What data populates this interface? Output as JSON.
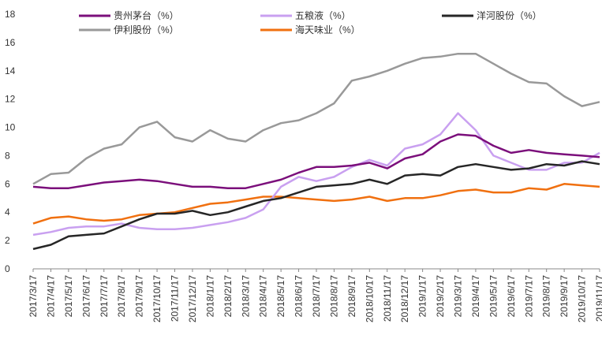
{
  "chart_data": {
    "type": "line",
    "categories": [
      "2017/3/17",
      "2017/4/17",
      "2017/5/17",
      "2017/6/17",
      "2017/7/17",
      "2017/8/17",
      "2017/9/17",
      "2017/10/17",
      "2017/11/17",
      "2017/12/17",
      "2018/1/17",
      "2018/2/17",
      "2018/3/17",
      "2018/4/17",
      "2018/5/17",
      "2018/6/17",
      "2018/7/17",
      "2018/8/17",
      "2018/9/17",
      "2018/10/17",
      "2018/11/17",
      "2018/12/17",
      "2019/1/17",
      "2019/2/17",
      "2019/3/17",
      "2019/4/17",
      "2019/5/17",
      "2019/6/17",
      "2019/7/17",
      "2019/8/17",
      "2019/9/17",
      "2019/10/17",
      "2019/11/17"
    ],
    "series": [
      {
        "name": "贵州茅台（%）",
        "color": "#7b0f7b",
        "values": [
          5.8,
          5.7,
          5.7,
          5.9,
          6.1,
          6.2,
          6.3,
          6.2,
          6.0,
          5.8,
          5.8,
          5.7,
          5.7,
          6.0,
          6.3,
          6.8,
          7.2,
          7.2,
          7.3,
          7.5,
          7.1,
          7.8,
          8.1,
          9.0,
          9.5,
          9.4,
          8.7,
          8.2,
          8.4,
          8.2,
          8.1,
          8.0,
          7.9
        ]
      },
      {
        "name": "五粮液（%）",
        "color": "#c9a0f0",
        "values": [
          2.4,
          2.6,
          2.9,
          3.0,
          3.0,
          3.2,
          2.9,
          2.8,
          2.8,
          2.9,
          3.1,
          3.3,
          3.6,
          4.2,
          5.8,
          6.5,
          6.2,
          6.5,
          7.2,
          7.7,
          7.3,
          8.5,
          8.8,
          9.5,
          11.0,
          9.8,
          8.0,
          7.5,
          7.0,
          7.0,
          7.5,
          7.5,
          8.2
        ]
      },
      {
        "name": "洋河股份（%）",
        "color": "#262626",
        "values": [
          1.4,
          1.7,
          2.3,
          2.4,
          2.5,
          3.0,
          3.5,
          3.9,
          3.9,
          4.1,
          3.8,
          4.0,
          4.4,
          4.8,
          5.0,
          5.4,
          5.8,
          5.9,
          6.0,
          6.3,
          6.0,
          6.6,
          6.7,
          6.6,
          7.2,
          7.4,
          7.2,
          7.0,
          7.1,
          7.4,
          7.3,
          7.6,
          7.4
        ]
      },
      {
        "name": "伊利股份（%）",
        "color": "#999999",
        "values": [
          6.0,
          6.7,
          6.8,
          7.8,
          8.5,
          8.8,
          10.0,
          10.4,
          9.3,
          9.0,
          9.8,
          9.2,
          9.0,
          9.8,
          10.3,
          10.5,
          11.0,
          11.7,
          13.3,
          13.6,
          14.0,
          14.5,
          14.9,
          15.0,
          15.2,
          15.2,
          14.5,
          13.8,
          13.2,
          13.1,
          12.2,
          11.5,
          11.8
        ]
      },
      {
        "name": "海天味业（%）",
        "color": "#f07010",
        "values": [
          3.2,
          3.6,
          3.7,
          3.5,
          3.4,
          3.5,
          3.8,
          3.9,
          4.0,
          4.3,
          4.6,
          4.7,
          4.9,
          5.1,
          5.1,
          5.0,
          4.9,
          4.8,
          4.9,
          5.1,
          4.8,
          5.0,
          5.0,
          5.2,
          5.5,
          5.6,
          5.4,
          5.4,
          5.7,
          5.6,
          6.0,
          5.9,
          5.8
        ]
      }
    ],
    "ylim": [
      0,
      18
    ],
    "yticks": [
      0,
      2,
      4,
      6,
      8,
      10,
      12,
      14,
      16,
      18
    ],
    "grid": false
  }
}
